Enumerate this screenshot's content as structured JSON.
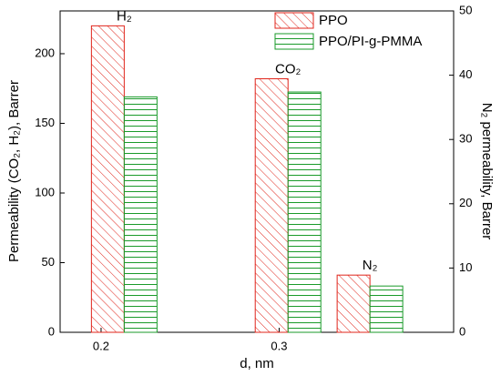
{
  "chart_data": {
    "type": "bar",
    "x": [
      0.213,
      0.305,
      0.351
    ],
    "annotations": [
      "H₂",
      "CO₂",
      "N₂"
    ],
    "bar_axes": [
      "y",
      "y",
      "y2"
    ],
    "series": [
      {
        "name": "PPO",
        "color": "#e0251b",
        "hatch": "diagonal",
        "values": [
          220,
          182,
          8.9
        ]
      },
      {
        "name": "PPO/PI-g-PMMA",
        "color": "#1a9a2a",
        "hatch": "horizontal",
        "values": [
          169,
          172.5,
          7.2
        ]
      }
    ],
    "xlabel": "d, nm",
    "ylabel": "Permeability (CO₂, H₂), Barrer",
    "y2label": "N₂ permeability, Barrer",
    "xlim": [
      0.177,
      0.398
    ],
    "xticks": [
      0.2,
      0.3
    ],
    "ylim": [
      0,
      230.7
    ],
    "yticks": [
      0,
      50,
      100,
      150,
      200
    ],
    "y2lim": [
      0,
      50
    ],
    "y2ticks": [
      0,
      10,
      20,
      30,
      40,
      50
    ],
    "legend": "top-right"
  }
}
